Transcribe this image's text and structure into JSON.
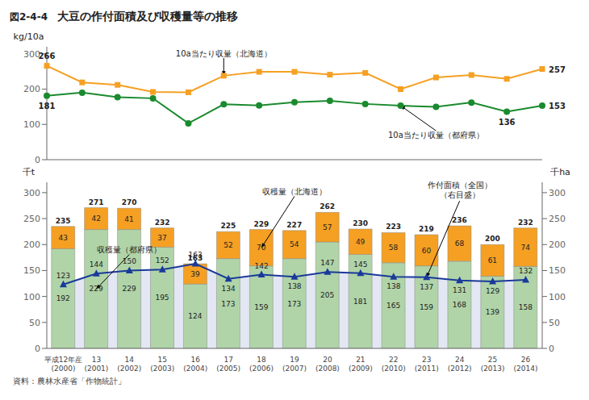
{
  "chart_data": [
    {
      "type": "line",
      "title": "大豆の作付面積及び収穫量等の推移",
      "subtitle": "図2-4-4",
      "categories": [
        "平成12年産\n(2000)",
        "13\n(2001)",
        "14\n(2002)",
        "15\n(2003)",
        "16\n(2004)",
        "17\n(2005)",
        "18\n(2006)",
        "19\n(2007)",
        "20\n(2008)",
        "21\n(2009)",
        "22\n(2010)",
        "23\n(2011)",
        "24\n(2012)",
        "25\n(2013)",
        "26\n(2014)"
      ],
      "tick_labels": "y",
      "y_label": "kg/10a",
      "ylim": [
        0,
        320
      ],
      "yticks": [
        0,
        100,
        200,
        300
      ],
      "series": [
        {
          "name": "10a当たり収量（北海道）",
          "color": "#f5a023",
          "marker": "square",
          "values": [
            266,
            219,
            212,
            192,
            191,
            238,
            249,
            249,
            241,
            246,
            200,
            233,
            240,
            229,
            257
          ],
          "value_labels": [
            "266",
            null,
            null,
            null,
            null,
            null,
            null,
            null,
            null,
            null,
            null,
            null,
            null,
            null,
            "257"
          ]
        },
        {
          "name": "10a当たり収量（都府県）",
          "color": "#1a8a2e",
          "marker": "circle",
          "values": [
            181,
            190,
            177,
            174,
            103,
            157,
            154,
            163,
            167,
            158,
            153,
            150,
            162,
            136,
            153
          ],
          "value_labels": [
            "181",
            null,
            null,
            null,
            null,
            null,
            null,
            null,
            null,
            null,
            null,
            null,
            null,
            "136",
            "153"
          ]
        }
      ]
    },
    {
      "type": "bar",
      "stacked": true,
      "data_labels": true,
      "categories": [
        "平成12年産\n(2000)",
        "13\n(2001)",
        "14\n(2002)",
        "15\n(2003)",
        "16\n(2004)",
        "17\n(2005)",
        "18\n(2006)",
        "19\n(2007)",
        "20\n(2008)",
        "21\n(2009)",
        "22\n(2010)",
        "23\n(2011)",
        "24\n(2012)",
        "25\n(2013)",
        "26\n(2014)"
      ],
      "y_label": "千t",
      "y2_label": "千ha",
      "ylim": [
        0,
        320
      ],
      "yticks": [
        0,
        50,
        100,
        150,
        200,
        250,
        300
      ],
      "y2lim": [
        0,
        320
      ],
      "y2ticks": [
        0,
        50,
        100,
        150,
        200,
        250,
        300
      ],
      "totals": [
        235,
        271,
        270,
        232,
        163,
        225,
        229,
        227,
        262,
        230,
        223,
        219,
        236,
        200,
        232
      ],
      "series": [
        {
          "name": "収穫量（都府県）",
          "color": "#b0d4a8",
          "values": [
            192,
            229,
            229,
            195,
            124,
            173,
            159,
            173,
            205,
            181,
            165,
            159,
            168,
            139,
            158
          ]
        },
        {
          "name": "収穫量（北海道）",
          "color": "#f5a023",
          "values": [
            43,
            42,
            41,
            37,
            39,
            52,
            70,
            54,
            57,
            49,
            58,
            60,
            68,
            61,
            74
          ]
        },
        {
          "name": "作付面積（全国）\n（右目盛）",
          "type": "area",
          "axis": "y2",
          "color": "#1a3a9a",
          "marker": "triangle",
          "values": [
            123,
            144,
            150,
            152,
            163,
            134,
            142,
            138,
            147,
            145,
            138,
            137,
            131,
            129,
            132
          ]
        }
      ],
      "annotations": [
        "資料：農林水産省「作物統計」"
      ]
    }
  ]
}
